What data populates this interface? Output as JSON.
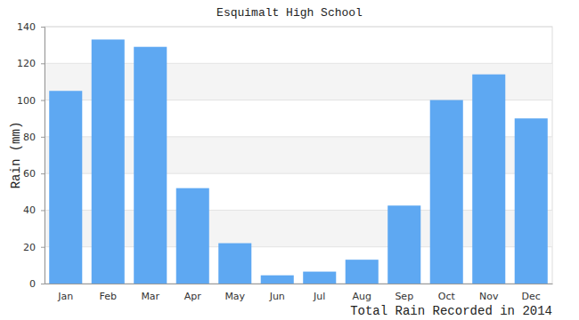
{
  "chart_data": {
    "type": "bar",
    "title": "Esquimalt High School",
    "ylabel": "Rain (mm)",
    "xlabel": "Total Rain Recorded in 2014",
    "categories": [
      "Jan",
      "Feb",
      "Mar",
      "Apr",
      "May",
      "Jun",
      "Jul",
      "Aug",
      "Sep",
      "Oct",
      "Nov",
      "Dec"
    ],
    "values": [
      105,
      133,
      129,
      52,
      22,
      4.5,
      6.5,
      13,
      42.5,
      100,
      114,
      90
    ],
    "color": "#5ea8f2",
    "ylim": [
      0,
      140
    ],
    "yticks": [
      0,
      20,
      40,
      60,
      80,
      100,
      120,
      140
    ],
    "grid": true
  }
}
